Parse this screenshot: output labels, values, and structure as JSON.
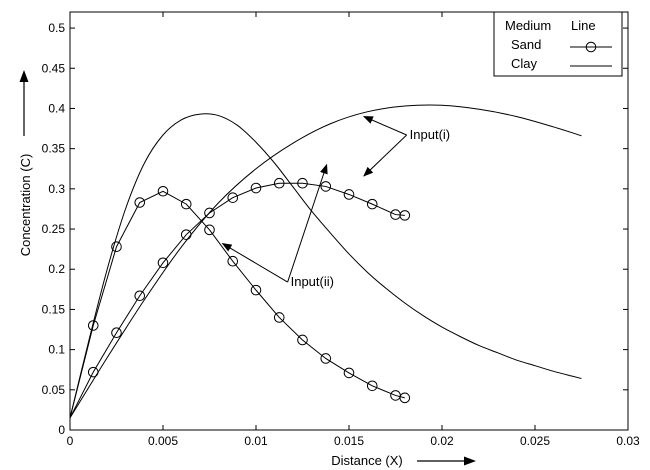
{
  "chart_data": {
    "type": "line",
    "title": "",
    "xlabel": "Distance (X)",
    "ylabel": "Concentration (C)",
    "xlim": [
      0,
      0.03
    ],
    "ylim": [
      0,
      0.52
    ],
    "xticks": [
      "0",
      "0.005",
      "0.01",
      "0.015",
      "0.02",
      "0.025",
      "0.03"
    ],
    "yticks": [
      "0",
      "0.05",
      "0.1",
      "0.15",
      "0.2",
      "0.25",
      "0.3",
      "0.35",
      "0.4",
      "0.45",
      "0.5"
    ],
    "grid": false,
    "legend": {
      "position": "top-right",
      "header_medium": "Medium",
      "header_line": "Line",
      "entries": [
        "Sand",
        "Clay"
      ]
    },
    "series": [
      {
        "name": "Sand",
        "input": "Input(i)",
        "marker": "circle",
        "color": "#000000",
        "x": [
          0,
          0.00125,
          0.0025,
          0.00375,
          0.005,
          0.00625,
          0.0075,
          0.00875,
          0.01,
          0.01125,
          0.0125,
          0.01375,
          0.015,
          0.01625,
          0.0175,
          0.018
        ],
        "y": [
          0.015,
          0.072,
          0.121,
          0.167,
          0.208,
          0.243,
          0.27,
          0.289,
          0.301,
          0.307,
          0.307,
          0.303,
          0.293,
          0.281,
          0.268,
          0.267
        ]
      },
      {
        "name": "Sand",
        "input": "Input(ii)",
        "marker": "circle",
        "color": "#000000",
        "x": [
          0,
          0.00125,
          0.0025,
          0.00375,
          0.005,
          0.00625,
          0.0075,
          0.00875,
          0.01,
          0.01125,
          0.0125,
          0.01375,
          0.015,
          0.01625,
          0.0175,
          0.018
        ],
        "y": [
          0.015,
          0.13,
          0.228,
          0.283,
          0.297,
          0.281,
          0.249,
          0.21,
          0.174,
          0.14,
          0.112,
          0.089,
          0.071,
          0.055,
          0.043,
          0.04
        ]
      },
      {
        "name": "Clay",
        "input": "Input(i)",
        "marker": "none",
        "color": "#000000",
        "x": [
          0,
          0.002,
          0.004,
          0.006,
          0.008,
          0.01,
          0.012,
          0.014,
          0.016,
          0.018,
          0.02,
          0.022,
          0.024,
          0.026,
          0.0275
        ],
        "y": [
          0.015,
          0.09,
          0.162,
          0.228,
          0.283,
          0.325,
          0.357,
          0.381,
          0.396,
          0.403,
          0.404,
          0.399,
          0.39,
          0.377,
          0.366
        ]
      },
      {
        "name": "Clay",
        "input": "Input(ii)",
        "marker": "none",
        "color": "#000000",
        "x": [
          0,
          0.001,
          0.002,
          0.003,
          0.004,
          0.005,
          0.006,
          0.007,
          0.008,
          0.009,
          0.01,
          0.011,
          0.012,
          0.013,
          0.014,
          0.015,
          0.016,
          0.017,
          0.018,
          0.019,
          0.02,
          0.021,
          0.022,
          0.023,
          0.024,
          0.025,
          0.026,
          0.027,
          0.0275
        ],
        "y": [
          0.015,
          0.11,
          0.2,
          0.276,
          0.332,
          0.367,
          0.386,
          0.393,
          0.391,
          0.379,
          0.358,
          0.332,
          0.302,
          0.272,
          0.245,
          0.219,
          0.196,
          0.176,
          0.158,
          0.142,
          0.128,
          0.116,
          0.105,
          0.096,
          0.087,
          0.08,
          0.073,
          0.067,
          0.064
        ]
      }
    ],
    "annotations": [
      {
        "text": "Input(i)",
        "position": [
          0.0181,
          0.367
        ],
        "arrow_tips": [
          [
            0.0158,
            0.39
          ],
          [
            0.0158,
            0.316
          ]
        ]
      },
      {
        "text": "Input(ii)",
        "position": [
          0.0117,
          0.184
        ],
        "arrow_tips": [
          [
            0.0082,
            0.232
          ],
          [
            0.0138,
            0.33
          ]
        ]
      }
    ]
  }
}
